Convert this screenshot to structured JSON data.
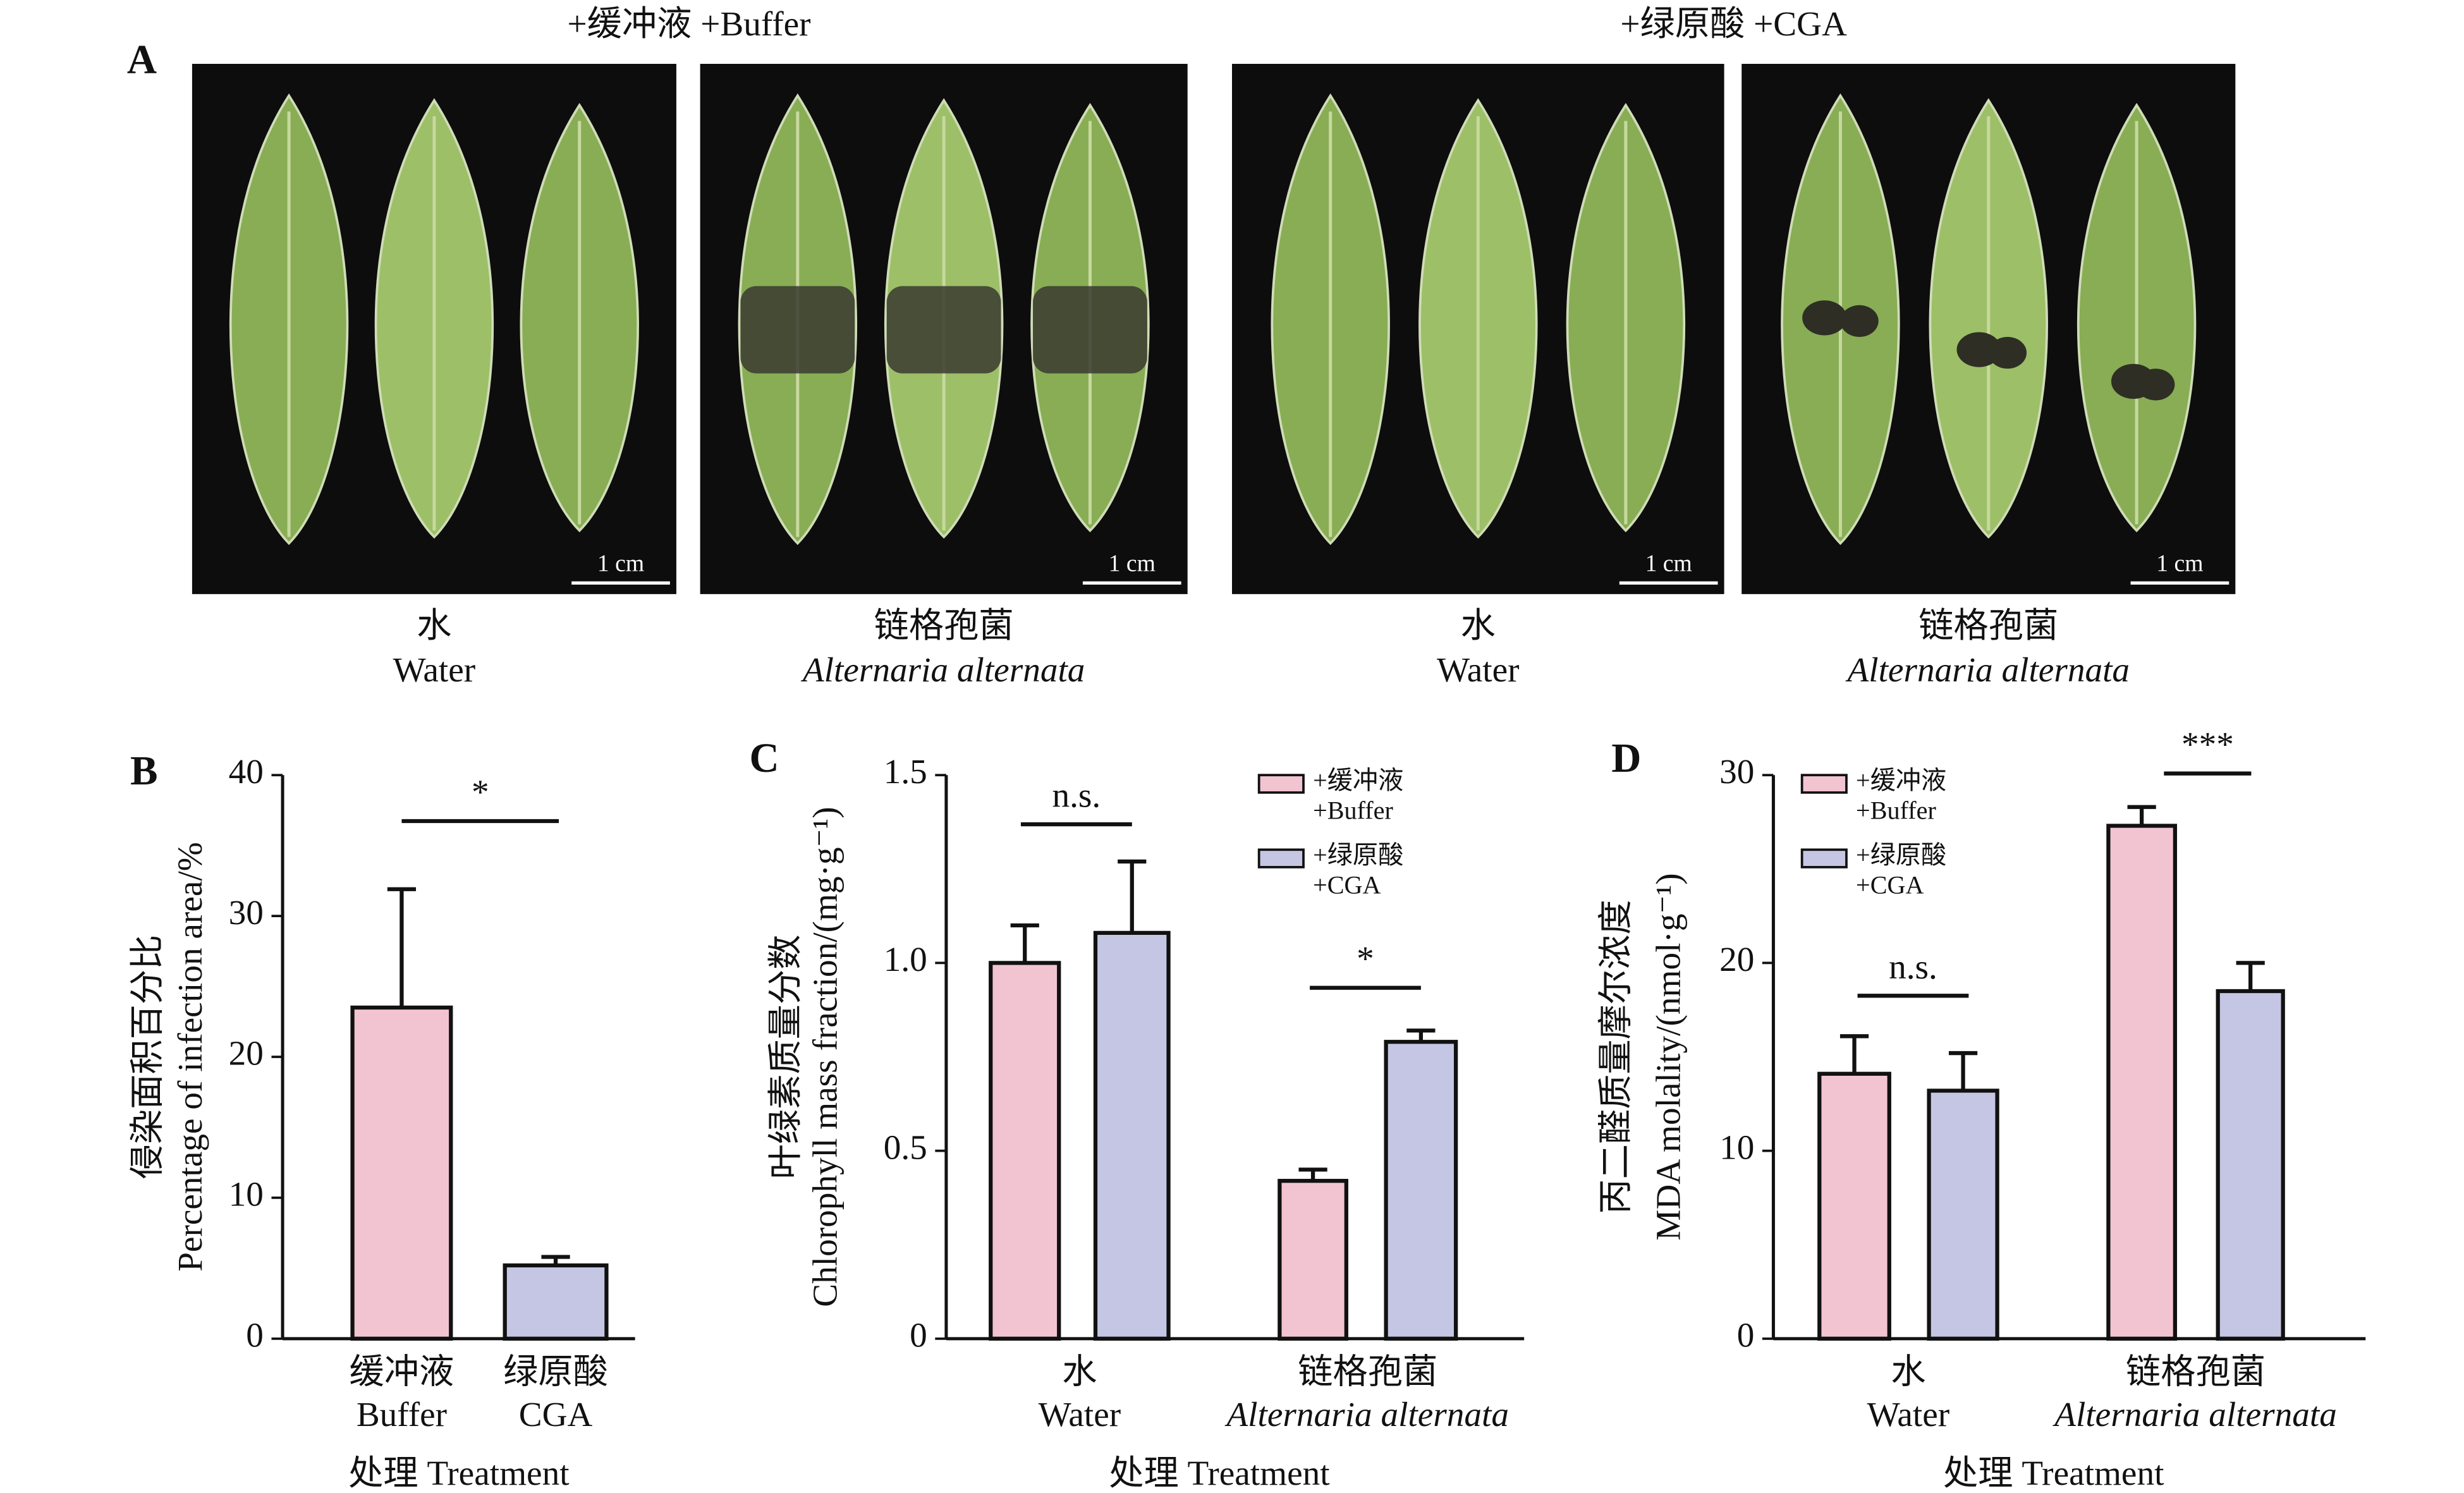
{
  "panel_a": {
    "label": "A",
    "groups": [
      {
        "title": "+缓冲液 +Buffer",
        "panels": [
          {
            "zh": "水",
            "en": "Water",
            "scale": "1 cm"
          },
          {
            "zh": "链格孢菌",
            "en": "Alternaria alternata",
            "scale": "1 cm"
          }
        ]
      },
      {
        "title": "+绿原酸 +CGA",
        "panels": [
          {
            "zh": "水",
            "en": "Water",
            "scale": "1 cm"
          },
          {
            "zh": "链格孢菌",
            "en": "Alternaria alternata",
            "scale": "1 cm"
          }
        ]
      }
    ]
  },
  "chart_data": [
    {
      "type": "bar",
      "label": "B",
      "ylabel": [
        "侵染面积百分比",
        "Percentage of infection area/%"
      ],
      "xlabel": "处理 Treatment",
      "categories": [
        {
          "zh": "缓冲液",
          "en": "Buffer"
        },
        {
          "zh": "绿原酸",
          "en": "CGA"
        }
      ],
      "values": [
        23.5,
        5.2
      ],
      "errors": [
        8.4,
        0.6
      ],
      "colors": [
        "#f2c4d2",
        "#c5c6e4"
      ],
      "ylim": [
        0,
        40
      ],
      "yticks": [
        0,
        10,
        20,
        30,
        40
      ],
      "annotations": [
        "*"
      ]
    },
    {
      "type": "grouped_bar",
      "label": "C",
      "ylabel": [
        "叶绿素质量分数",
        "Chlorophyll mass fraction/(mg·g⁻¹)"
      ],
      "xlabel": "处理 Treatment",
      "categories": [
        {
          "zh": "水",
          "en": "Water",
          "italic": false
        },
        {
          "zh": "链格孢菌",
          "en": "Alternaria alternata",
          "italic": true
        }
      ],
      "series": [
        {
          "name": "+缓冲液 +Buffer",
          "color": "#f2c4d2",
          "values": [
            1.0,
            0.42
          ],
          "errors": [
            0.1,
            0.03
          ]
        },
        {
          "name": "+绿原酸 +CGA",
          "color": "#c5c6e4",
          "values": [
            1.08,
            0.79
          ],
          "errors": [
            0.19,
            0.03
          ]
        }
      ],
      "ylim": [
        0,
        1.5
      ],
      "yticks": [
        0,
        0.5,
        {
          "value": 1,
          "label": "1.0"
        },
        1.5
      ],
      "annotations": [
        "n.s.",
        "*"
      ]
    },
    {
      "type": "grouped_bar",
      "label": "D",
      "ylabel": [
        "丙二醛质量摩尔浓度",
        "MDA molality/(nmol·g⁻¹)"
      ],
      "xlabel": "处理 Treatment",
      "categories": [
        {
          "zh": "水",
          "en": "Water",
          "italic": false
        },
        {
          "zh": "链格孢菌",
          "en": "Alternaria alternata",
          "italic": true
        }
      ],
      "series": [
        {
          "name": "+缓冲液 +Buffer",
          "color": "#f2c4d2",
          "values": [
            14.1,
            27.3
          ],
          "errors": [
            2.0,
            1.0
          ]
        },
        {
          "name": "+绿原酸 +CGA",
          "color": "#c5c6e4",
          "values": [
            13.2,
            18.5
          ],
          "errors": [
            2.0,
            1.5
          ]
        }
      ],
      "ylim": [
        0,
        30
      ],
      "yticks": [
        0,
        10,
        20,
        30
      ],
      "annotations": [
        "n.s.",
        "***"
      ]
    }
  ]
}
